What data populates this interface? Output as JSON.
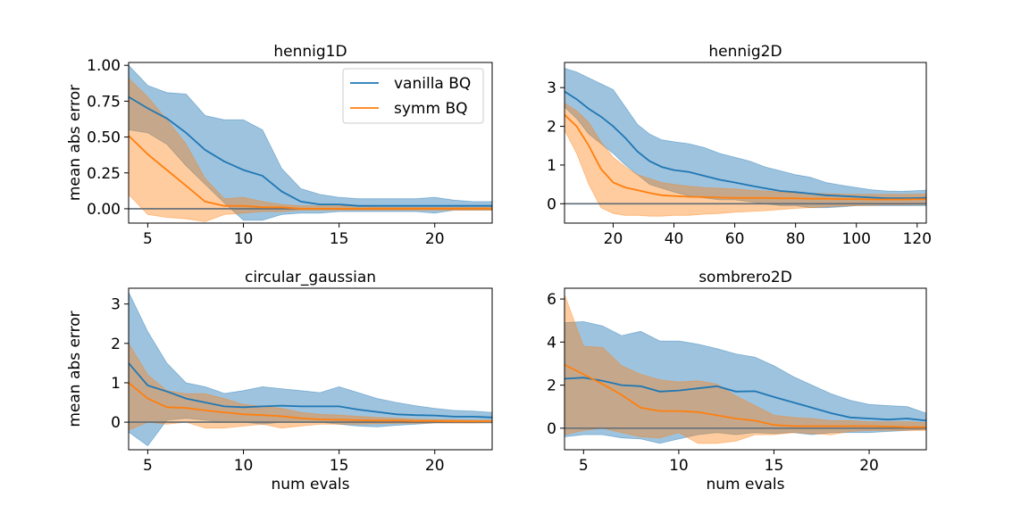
{
  "colors": {
    "vanilla": "#1f77b4",
    "vanilla_band": "#9ec3de",
    "symm": "#ff7f0e",
    "symm_band": "#ffc79a",
    "overlap": "#c2a58e",
    "zero_line": "#5f6c77"
  },
  "chart_data": [
    {
      "type": "line",
      "title": "hennig1D",
      "xlabel": "",
      "ylabel": "mean abs error",
      "xlim": [
        4,
        23
      ],
      "ylim": [
        -0.1,
        1.02
      ],
      "xticks": [
        5,
        10,
        15,
        20
      ],
      "xtick_labels": [
        "5",
        "10",
        "15",
        "20"
      ],
      "yticks": [
        0,
        0.25,
        0.5,
        0.75,
        1.0
      ],
      "ytick_labels": [
        "0.00",
        "0.25",
        "0.50",
        "0.75",
        "1.00"
      ],
      "legend": {
        "position": "top-right",
        "entries": [
          "vanilla BQ",
          "symm BQ"
        ]
      },
      "x": [
        4,
        5,
        6,
        7,
        8,
        9,
        10,
        11,
        12,
        13,
        14,
        15,
        16,
        17,
        18,
        19,
        20,
        21,
        22,
        23
      ],
      "series": [
        {
          "name": "vanilla BQ",
          "mean": [
            0.78,
            0.7,
            0.63,
            0.53,
            0.41,
            0.33,
            0.27,
            0.23,
            0.12,
            0.05,
            0.03,
            0.03,
            0.02,
            0.02,
            0.02,
            0.02,
            0.02,
            0.02,
            0.02,
            0.02
          ],
          "upper": [
            1.0,
            0.86,
            0.81,
            0.8,
            0.65,
            0.62,
            0.62,
            0.55,
            0.28,
            0.14,
            0.1,
            0.08,
            0.07,
            0.07,
            0.07,
            0.07,
            0.08,
            0.06,
            0.05,
            0.05
          ],
          "lower": [
            0.55,
            0.53,
            0.45,
            0.3,
            0.17,
            0.04,
            -0.08,
            -0.08,
            -0.04,
            -0.03,
            -0.03,
            -0.02,
            -0.02,
            -0.02,
            -0.02,
            -0.02,
            -0.03,
            -0.01,
            -0.01,
            -0.01
          ]
        },
        {
          "name": "symm BQ",
          "mean": [
            0.51,
            0.38,
            0.27,
            0.16,
            0.05,
            0.02,
            0.02,
            0.01,
            0.01,
            0.0,
            0.0,
            0.0,
            0.0,
            0.0,
            0.0,
            0.0,
            0.0,
            0.0,
            0.0,
            0.0
          ],
          "upper": [
            0.91,
            0.78,
            0.62,
            0.45,
            0.21,
            0.07,
            0.08,
            0.05,
            0.03,
            0.02,
            0.02,
            0.02,
            0.02,
            0.01,
            0.01,
            0.01,
            0.01,
            0.01,
            0.01,
            0.01
          ],
          "lower": [
            0.1,
            -0.04,
            -0.06,
            -0.07,
            -0.09,
            -0.04,
            -0.03,
            -0.02,
            -0.02,
            -0.01,
            -0.01,
            -0.01,
            -0.01,
            -0.01,
            -0.01,
            -0.01,
            -0.01,
            -0.01,
            -0.01,
            -0.01
          ]
        }
      ]
    },
    {
      "type": "line",
      "title": "hennig2D",
      "xlabel": "",
      "ylabel": "",
      "xlim": [
        4,
        123
      ],
      "ylim": [
        -0.5,
        3.65
      ],
      "xticks": [
        20,
        40,
        60,
        80,
        100,
        120
      ],
      "xtick_labels": [
        "20",
        "40",
        "60",
        "80",
        "100",
        "120"
      ],
      "yticks": [
        0,
        1,
        2,
        3
      ],
      "ytick_labels": [
        "0",
        "1",
        "2",
        "3"
      ],
      "x": [
        4,
        8,
        12,
        16,
        20,
        24,
        28,
        32,
        36,
        40,
        45,
        50,
        55,
        60,
        65,
        70,
        75,
        80,
        85,
        90,
        95,
        100,
        105,
        110,
        115,
        123
      ],
      "series": [
        {
          "name": "vanilla BQ",
          "mean": [
            2.9,
            2.7,
            2.45,
            2.25,
            2.0,
            1.7,
            1.35,
            1.1,
            0.95,
            0.87,
            0.82,
            0.72,
            0.62,
            0.55,
            0.47,
            0.4,
            0.33,
            0.3,
            0.26,
            0.22,
            0.2,
            0.18,
            0.16,
            0.14,
            0.14,
            0.15
          ],
          "upper": [
            3.5,
            3.4,
            3.25,
            3.1,
            2.95,
            2.5,
            2.05,
            1.8,
            1.65,
            1.6,
            1.55,
            1.45,
            1.3,
            1.2,
            1.1,
            0.95,
            0.85,
            0.75,
            0.68,
            0.55,
            0.48,
            0.42,
            0.36,
            0.33,
            0.32,
            0.35
          ],
          "lower": [
            2.5,
            2.2,
            1.8,
            1.55,
            1.3,
            1.0,
            0.75,
            0.5,
            0.4,
            0.3,
            0.2,
            0.15,
            0.1,
            0.1,
            0.05,
            0.0,
            -0.05,
            -0.05,
            -0.1,
            -0.1,
            -0.08,
            -0.05,
            -0.05,
            -0.05,
            -0.05,
            -0.05
          ]
        },
        {
          "name": "symm BQ",
          "mean": [
            2.3,
            2.0,
            1.5,
            0.9,
            0.55,
            0.42,
            0.35,
            0.28,
            0.22,
            0.2,
            0.18,
            0.17,
            0.16,
            0.15,
            0.15,
            0.15,
            0.14,
            0.14,
            0.13,
            0.13,
            0.12,
            0.12,
            0.11,
            0.11,
            0.11,
            0.12
          ],
          "upper": [
            2.6,
            2.4,
            2.1,
            1.6,
            1.2,
            0.95,
            0.75,
            0.65,
            0.55,
            0.5,
            0.45,
            0.42,
            0.4,
            0.38,
            0.35,
            0.33,
            0.3,
            0.28,
            0.27,
            0.26,
            0.25,
            0.24,
            0.24,
            0.24,
            0.24,
            0.25
          ],
          "lower": [
            1.9,
            1.3,
            0.5,
            -0.1,
            -0.25,
            -0.3,
            -0.3,
            -0.32,
            -0.32,
            -0.3,
            -0.3,
            -0.27,
            -0.25,
            -0.22,
            -0.2,
            -0.18,
            -0.15,
            -0.12,
            -0.1,
            -0.08,
            -0.06,
            -0.05,
            -0.04,
            -0.03,
            -0.03,
            -0.02
          ]
        }
      ]
    },
    {
      "type": "line",
      "title": "circular_gaussian",
      "xlabel": "num evals",
      "ylabel": "mean abs error",
      "xlim": [
        4,
        23
      ],
      "ylim": [
        -0.7,
        3.4
      ],
      "xticks": [
        5,
        10,
        15,
        20
      ],
      "xtick_labels": [
        "5",
        "10",
        "15",
        "20"
      ],
      "yticks": [
        0,
        1,
        2,
        3
      ],
      "ytick_labels": [
        "0",
        "1",
        "2",
        "3"
      ],
      "x": [
        4,
        5,
        6,
        7,
        8,
        9,
        10,
        11,
        12,
        13,
        14,
        15,
        16,
        17,
        18,
        19,
        20,
        21,
        22,
        23
      ],
      "series": [
        {
          "name": "vanilla BQ",
          "mean": [
            1.5,
            0.93,
            0.78,
            0.6,
            0.5,
            0.4,
            0.38,
            0.4,
            0.42,
            0.4,
            0.4,
            0.4,
            0.32,
            0.26,
            0.2,
            0.18,
            0.17,
            0.14,
            0.14,
            0.12
          ],
          "upper": [
            3.3,
            2.3,
            1.5,
            1.0,
            0.9,
            0.73,
            0.8,
            0.9,
            0.85,
            0.8,
            0.75,
            0.9,
            0.75,
            0.6,
            0.5,
            0.42,
            0.35,
            0.3,
            0.28,
            0.25
          ],
          "lower": [
            -0.25,
            -0.6,
            0.05,
            0.1,
            0.05,
            0.0,
            0.0,
            -0.05,
            0.0,
            0.0,
            0.0,
            -0.05,
            -0.1,
            -0.12,
            -0.08,
            -0.05,
            -0.02,
            -0.02,
            -0.02,
            -0.02
          ]
        },
        {
          "name": "symm BQ",
          "mean": [
            1.0,
            0.6,
            0.38,
            0.36,
            0.3,
            0.25,
            0.2,
            0.18,
            0.15,
            0.1,
            0.07,
            0.06,
            0.05,
            0.04,
            0.04,
            0.03,
            0.03,
            0.02,
            0.02,
            0.02
          ],
          "upper": [
            2.0,
            1.2,
            0.8,
            0.72,
            0.72,
            0.6,
            0.45,
            0.4,
            0.35,
            0.25,
            0.2,
            0.18,
            0.15,
            0.12,
            0.1,
            0.08,
            0.07,
            0.06,
            0.05,
            0.05
          ],
          "lower": [
            -0.2,
            0.0,
            -0.05,
            0.0,
            -0.15,
            -0.15,
            -0.1,
            -0.05,
            -0.15,
            -0.1,
            -0.05,
            -0.05,
            -0.05,
            -0.04,
            -0.03,
            -0.03,
            -0.02,
            -0.02,
            -0.02,
            -0.01
          ]
        }
      ]
    },
    {
      "type": "line",
      "title": "sombrero2D",
      "xlabel": "num evals",
      "ylabel": "",
      "xlim": [
        4,
        23
      ],
      "ylim": [
        -1.0,
        6.5
      ],
      "xticks": [
        5,
        10,
        15,
        20
      ],
      "xtick_labels": [
        "5",
        "10",
        "15",
        "20"
      ],
      "yticks": [
        0,
        2,
        4,
        6
      ],
      "ytick_labels": [
        "0",
        "2",
        "4",
        "6"
      ],
      "x": [
        4,
        5,
        6,
        7,
        8,
        9,
        10,
        11,
        12,
        13,
        14,
        15,
        16,
        17,
        18,
        19,
        20,
        21,
        22,
        23
      ],
      "series": [
        {
          "name": "vanilla BQ",
          "mean": [
            2.3,
            2.35,
            2.2,
            2.0,
            1.95,
            1.7,
            1.75,
            1.85,
            1.95,
            1.7,
            1.72,
            1.45,
            1.2,
            0.95,
            0.7,
            0.5,
            0.45,
            0.4,
            0.45,
            0.35
          ],
          "upper": [
            4.9,
            4.95,
            4.75,
            4.3,
            4.5,
            4.05,
            4.05,
            3.9,
            3.7,
            3.45,
            3.3,
            2.9,
            2.4,
            2.0,
            1.6,
            1.3,
            1.1,
            1.05,
            1.0,
            0.7
          ],
          "lower": [
            -0.4,
            -0.3,
            -0.3,
            -0.45,
            -0.5,
            -0.7,
            -0.5,
            -0.3,
            -0.2,
            -0.3,
            -0.2,
            -0.25,
            -0.2,
            -0.3,
            -0.2,
            -0.2,
            -0.2,
            -0.15,
            -0.1,
            -0.05
          ]
        },
        {
          "name": "symm BQ",
          "mean": [
            2.95,
            2.5,
            2.05,
            1.55,
            0.95,
            0.8,
            0.8,
            0.75,
            0.6,
            0.45,
            0.35,
            0.15,
            0.1,
            0.1,
            0.1,
            0.1,
            0.1,
            0.08,
            0.05,
            0.05
          ],
          "upper": [
            6.2,
            3.8,
            3.75,
            2.9,
            2.5,
            2.25,
            2.15,
            2.2,
            2.05,
            1.5,
            1.05,
            0.6,
            0.5,
            0.45,
            0.35,
            0.35,
            0.3,
            0.3,
            0.3,
            0.25
          ],
          "lower": [
            -0.3,
            -0.1,
            0.0,
            -0.2,
            -0.4,
            -0.45,
            -0.2,
            -0.7,
            -0.7,
            -0.6,
            -0.3,
            -0.3,
            -0.2,
            -0.25,
            -0.3,
            -0.15,
            -0.1,
            -0.1,
            -0.1,
            -0.1
          ]
        }
      ]
    }
  ]
}
